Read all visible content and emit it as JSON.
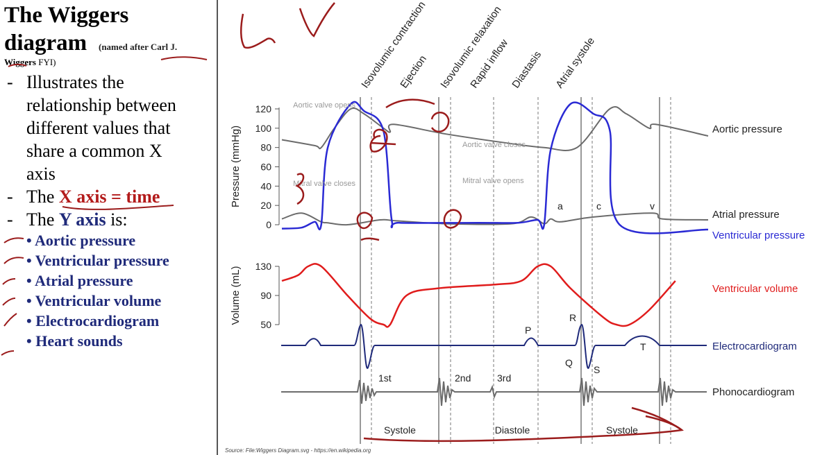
{
  "slide": {
    "title_line1": "The Wiggers",
    "title_line2": "diagram",
    "title_note": "(named after Carl J.",
    "title_line3_bold": "Wiggers",
    "title_line3_rest": " FYI)",
    "bullet1_dash": "-",
    "bullet1_lines": [
      "Illustrates the",
      "relationship between",
      "different values that",
      "share a common X",
      "axis"
    ],
    "bullet2_prefix": "The ",
    "bullet2_highlight": "X axis = time",
    "bullet3_prefix": "The ",
    "bullet3_highlight": "Y axis",
    "bullet3_suffix": " is:",
    "sub_items": [
      "• Aortic pressure",
      "• Ventricular pressure",
      "• Atrial pressure",
      "• Ventricular volume",
      "• Electrocardiogram",
      "• Heart sounds"
    ]
  },
  "chart_data": {
    "type": "line",
    "phases": [
      "Isovolumic contraction",
      "Ejection",
      "Isovolumic relaxation",
      "Rapid inflow",
      "Diastasis",
      "Atrial systole"
    ],
    "pressure_axis": {
      "label": "Pressure (mmHg)",
      "ticks": [
        0,
        20,
        40,
        60,
        80,
        100,
        120
      ],
      "ylim": [
        0,
        120
      ]
    },
    "volume_axis": {
      "label": "Volume (mL)",
      "ticks": [
        50,
        90,
        130
      ],
      "ylim": [
        50,
        130
      ]
    },
    "annotations": [
      "Aortic valve opens",
      "Aortic valve closes",
      "Mitral valve closes",
      "Mitral valve opens"
    ],
    "atrial_waves": [
      "a",
      "c",
      "v"
    ],
    "ecg_waves": [
      "P",
      "Q",
      "R",
      "S",
      "T"
    ],
    "heart_sounds": [
      "1st",
      "2nd",
      "3rd"
    ],
    "cycle_labels": [
      "Systole",
      "Diastole",
      "Systole"
    ],
    "series": [
      {
        "name": "Aortic pressure",
        "color": "#6b6b6b",
        "points": [
          [
            0.0,
            88
          ],
          [
            0.1,
            82
          ],
          [
            0.12,
            80
          ],
          [
            0.16,
            100
          ],
          [
            0.21,
            120
          ],
          [
            0.25,
            115
          ],
          [
            0.31,
            100
          ],
          [
            0.33,
            96
          ],
          [
            0.34,
            104
          ],
          [
            0.5,
            94
          ],
          [
            0.7,
            84
          ],
          [
            0.8,
            80
          ],
          [
            0.9,
            80
          ],
          [
            1.0,
            120
          ],
          [
            1.05,
            115
          ],
          [
            1.12,
            100
          ],
          [
            1.14,
            104
          ],
          [
            1.3,
            92
          ]
        ]
      },
      {
        "name": "Atrial pressure",
        "color": "#6b6b6b",
        "points": [
          [
            0.0,
            6
          ],
          [
            0.06,
            12
          ],
          [
            0.12,
            3
          ],
          [
            0.14,
            2
          ],
          [
            0.2,
            0
          ],
          [
            0.3,
            5
          ],
          [
            0.35,
            4
          ],
          [
            0.5,
            1
          ],
          [
            0.7,
            1
          ],
          [
            0.76,
            8
          ],
          [
            0.8,
            1
          ],
          [
            0.82,
            6
          ],
          [
            0.85,
            3
          ],
          [
            0.95,
            8
          ],
          [
            1.13,
            12
          ],
          [
            1.16,
            6
          ],
          [
            1.3,
            5
          ]
        ]
      },
      {
        "name": "Ventricular pressure",
        "color": "#2a2ad4",
        "points": [
          [
            0.0,
            -4
          ],
          [
            0.06,
            -3
          ],
          [
            0.1,
            3
          ],
          [
            0.12,
            0
          ],
          [
            0.14,
            80
          ],
          [
            0.21,
            125
          ],
          [
            0.25,
            118
          ],
          [
            0.31,
            97
          ],
          [
            0.335,
            5
          ],
          [
            0.36,
            2
          ],
          [
            0.6,
            2
          ],
          [
            0.72,
            2
          ],
          [
            0.78,
            5
          ],
          [
            0.8,
            0
          ],
          [
            0.82,
            78
          ],
          [
            0.88,
            125
          ],
          [
            0.95,
            115
          ],
          [
            1.0,
            98
          ],
          [
            1.03,
            0
          ],
          [
            1.3,
            -5
          ]
        ]
      },
      {
        "name": "Ventricular volume",
        "color": "#e01c1c",
        "points": [
          [
            0.0,
            110
          ],
          [
            0.05,
            118
          ],
          [
            0.08,
            130
          ],
          [
            0.12,
            130
          ],
          [
            0.2,
            90
          ],
          [
            0.27,
            58
          ],
          [
            0.31,
            50
          ],
          [
            0.33,
            50
          ],
          [
            0.38,
            90
          ],
          [
            0.48,
            100
          ],
          [
            0.65,
            105
          ],
          [
            0.73,
            110
          ],
          [
            0.78,
            130
          ],
          [
            0.82,
            130
          ],
          [
            0.88,
            100
          ],
          [
            0.98,
            60
          ],
          [
            1.02,
            50
          ],
          [
            1.06,
            50
          ],
          [
            1.12,
            70
          ],
          [
            1.2,
            110
          ]
        ]
      },
      {
        "name": "Electrocardiogram",
        "color": "#1f2a7a"
      },
      {
        "name": "Phonocardiogram",
        "color": "#6b6b6b"
      }
    ],
    "source_note": "Source: File:Wiggers Diagram.svg - https://en.wikipedia.org"
  }
}
